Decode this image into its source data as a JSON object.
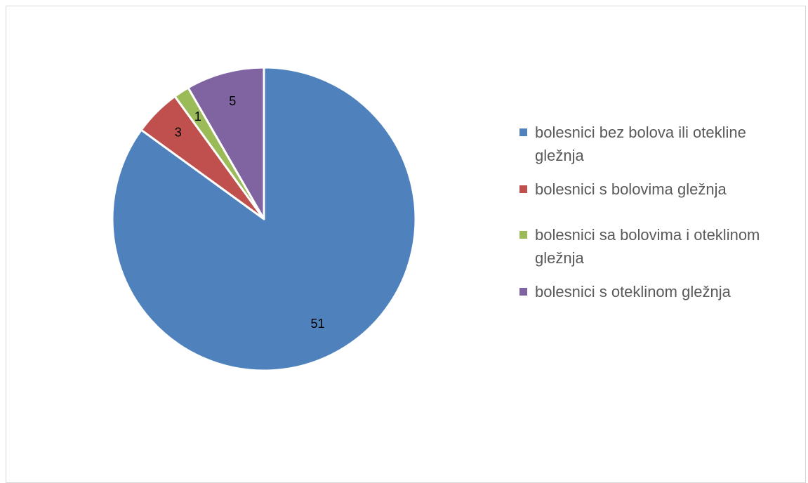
{
  "chart_data": {
    "type": "pie",
    "title": "",
    "start_angle": "12 o'clock",
    "direction": "clockwise",
    "legend_position": "right",
    "slices": [
      {
        "label": "bolesnici bez bolova ili otekline gležnja",
        "value": 51,
        "color": "#4F81BD"
      },
      {
        "label": "bolesnici s bolovima gležnja",
        "value": 3,
        "color": "#C0504D"
      },
      {
        "label": "bolesnici sa bolovima i oteklinom gležnja",
        "value": 1,
        "color": "#9BBB59"
      },
      {
        "label": "bolesnici s oteklinom gležnja",
        "value": 5,
        "color": "#8064A2"
      }
    ]
  }
}
